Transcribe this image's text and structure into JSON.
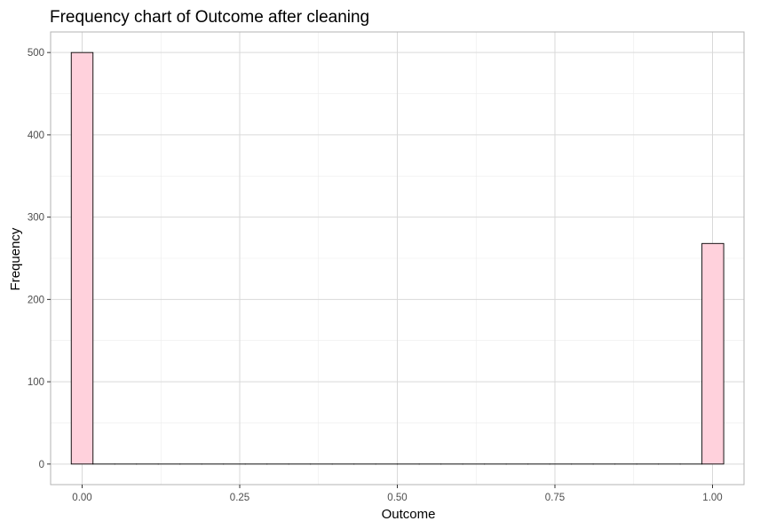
{
  "chart_data": {
    "type": "bar",
    "title": "Frequency chart of Outcome after cleaning",
    "xlabel": "Outcome",
    "ylabel": "Frequency",
    "xlim": [
      -0.05,
      1.05
    ],
    "ylim": [
      -25,
      525
    ],
    "x_ticks": [
      0.0,
      0.25,
      0.5,
      0.75,
      1.0
    ],
    "x_tick_labels": [
      "0.00",
      "0.25",
      "0.50",
      "0.75",
      "1.00"
    ],
    "y_ticks": [
      0,
      100,
      200,
      300,
      400,
      500
    ],
    "y_tick_labels": [
      "0",
      "100",
      "200",
      "300",
      "400",
      "500"
    ],
    "grid": true,
    "legend": "none",
    "bins": [
      {
        "x": 0.0,
        "count": 500
      },
      {
        "x": 1.0,
        "count": 268
      }
    ],
    "bin_width": 0.0345,
    "colors": {
      "fill": "#ffd1dc",
      "stroke": "#000000",
      "grid_major": "#d9d9d9",
      "grid_minor": "#ececec",
      "panel_border": "#b3b3b3"
    }
  }
}
